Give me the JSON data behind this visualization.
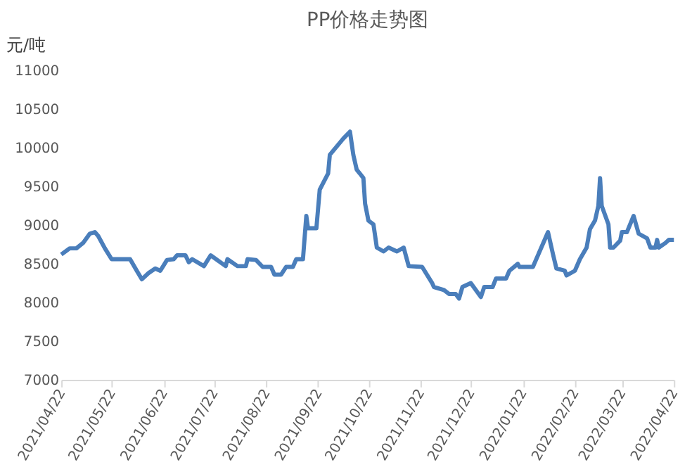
{
  "chart_data": {
    "type": "line",
    "title": "PP价格走势图",
    "ylabel": "元/吨",
    "x": [
      "2021-04-22",
      "2021-04-27",
      "2021-05-01",
      "2021-05-05",
      "2021-05-09",
      "2021-05-12",
      "2021-05-14",
      "2021-05-18",
      "2021-05-22",
      "2021-05-26",
      "2021-06-02",
      "2021-06-06",
      "2021-06-09",
      "2021-06-13",
      "2021-06-17",
      "2021-06-20",
      "2021-06-24",
      "2021-06-28",
      "2021-06-30",
      "2021-07-05",
      "2021-07-07",
      "2021-07-09",
      "2021-07-16",
      "2021-07-20",
      "2021-07-29",
      "2021-07-30",
      "2021-08-05",
      "2021-08-10",
      "2021-08-11",
      "2021-08-16",
      "2021-08-20",
      "2021-08-25",
      "2021-08-27",
      "2021-08-31",
      "2021-09-03",
      "2021-09-07",
      "2021-09-09",
      "2021-09-13",
      "2021-09-15",
      "2021-09-16",
      "2021-09-21",
      "2021-09-23",
      "2021-09-28",
      "2021-09-29",
      "2021-10-07",
      "2021-10-11",
      "2021-10-13",
      "2021-10-15",
      "2021-10-19",
      "2021-10-20",
      "2021-10-22",
      "2021-10-25",
      "2021-10-27",
      "2021-10-31",
      "2021-11-03",
      "2021-11-08",
      "2021-11-12",
      "2021-11-15",
      "2021-11-23",
      "2021-11-29",
      "2021-11-30",
      "2021-12-06",
      "2021-12-09",
      "2021-12-13",
      "2021-12-15",
      "2021-12-17",
      "2021-12-22",
      "2021-12-28",
      "2021-12-30",
      "2022-01-04",
      "2022-01-06",
      "2022-01-12",
      "2022-01-14",
      "2022-01-19",
      "2022-01-20",
      "2022-01-28",
      "2022-02-06",
      "2022-02-09",
      "2022-02-11",
      "2022-02-16",
      "2022-02-17",
      "2022-02-22",
      "2022-02-25",
      "2022-03-01",
      "2022-03-03",
      "2022-03-06",
      "2022-03-08",
      "2022-03-09",
      "2022-03-10",
      "2022-03-14",
      "2022-03-15",
      "2022-03-17",
      "2022-03-21",
      "2022-03-22",
      "2022-03-25",
      "2022-03-29",
      "2022-04-01",
      "2022-04-06",
      "2022-04-08",
      "2022-04-11",
      "2022-04-12",
      "2022-04-13",
      "2022-04-17",
      "2022-04-19",
      "2022-04-22"
    ],
    "series": [
      {
        "color": "#4a7ebb",
        "values": [
          8620,
          8700,
          8700,
          8770,
          8890,
          8910,
          8860,
          8700,
          8560,
          8560,
          8560,
          8410,
          8300,
          8380,
          8440,
          8410,
          8550,
          8560,
          8610,
          8610,
          8520,
          8560,
          8470,
          8610,
          8470,
          8560,
          8470,
          8470,
          8560,
          8550,
          8460,
          8460,
          8360,
          8360,
          8460,
          8460,
          8560,
          8560,
          9120,
          8960,
          8960,
          9460,
          9670,
          9910,
          10120,
          10210,
          9910,
          9720,
          9610,
          9280,
          9060,
          9010,
          8710,
          8660,
          8710,
          8660,
          8710,
          8470,
          8460,
          8250,
          8200,
          8160,
          8110,
          8110,
          8050,
          8200,
          8250,
          8070,
          8200,
          8200,
          8310,
          8310,
          8410,
          8500,
          8460,
          8460,
          8910,
          8620,
          8440,
          8410,
          8350,
          8410,
          8560,
          8710,
          8950,
          9060,
          9250,
          9610,
          9250,
          9010,
          8710,
          8710,
          8800,
          8910,
          8910,
          9120,
          8890,
          8830,
          8710,
          8710,
          8810,
          8710,
          8770,
          8810,
          8810
        ]
      }
    ],
    "xlim": [
      "2021-04-22",
      "2022-04-22"
    ],
    "xticks": [
      {
        "value": "2021-04-22",
        "label": "2021/04/22"
      },
      {
        "value": "2021-05-22",
        "label": "2021/05/22"
      },
      {
        "value": "2021-06-22",
        "label": "2021/06/22"
      },
      {
        "value": "2021-07-22",
        "label": "2021/07/22"
      },
      {
        "value": "2021-08-22",
        "label": "2021/08/22"
      },
      {
        "value": "2021-09-22",
        "label": "2021/09/22"
      },
      {
        "value": "2021-10-22",
        "label": "2021/10/22"
      },
      {
        "value": "2021-11-22",
        "label": "2021/11/22"
      },
      {
        "value": "2021-12-22",
        "label": "2021/12/22"
      },
      {
        "value": "2022-01-22",
        "label": "2022/01/22"
      },
      {
        "value": "2022-02-22",
        "label": "2022/02/22"
      },
      {
        "value": "2022-03-22",
        "label": "2022/03/22"
      },
      {
        "value": "2022-04-22",
        "label": "2022/04/22"
      }
    ],
    "ylim": [
      7000,
      11000
    ],
    "yticks": [
      7000,
      7500,
      8000,
      8500,
      9000,
      9500,
      10000,
      10500,
      11000
    ],
    "grid": false,
    "marker": "none",
    "line_style": "solid"
  }
}
